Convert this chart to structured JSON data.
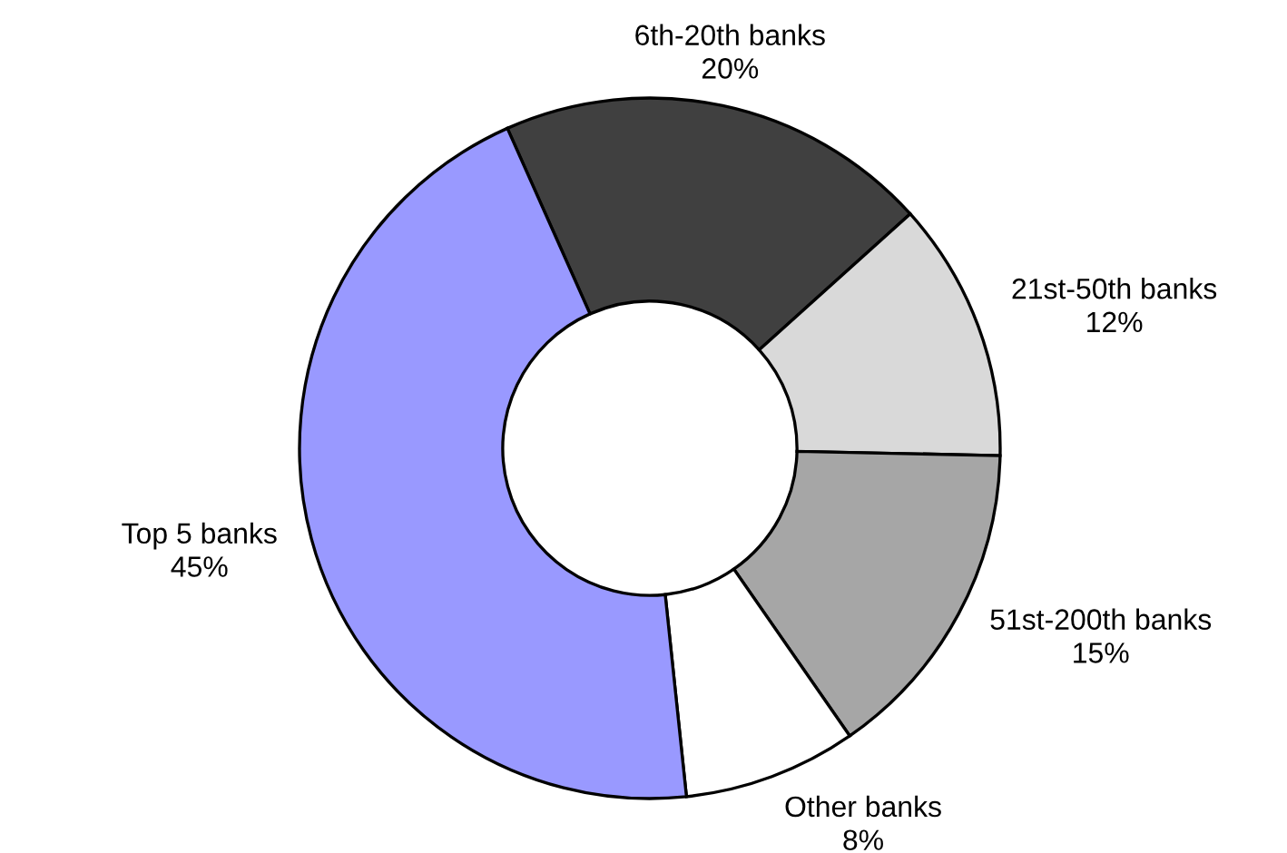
{
  "chart_data": {
    "type": "donut",
    "categories": [
      "6th-20th banks",
      "21st-50th banks",
      "51st-200th banks",
      "Other banks",
      "Top 5 banks"
    ],
    "values": [
      20,
      12,
      15,
      8,
      45
    ],
    "value_labels": [
      "20%",
      "12%",
      "15%",
      "8%",
      "45%"
    ],
    "colors": [
      "#404040",
      "#d9d9d9",
      "#a6a6a6",
      "#ffffff",
      "#9999ff"
    ],
    "legend": false
  }
}
